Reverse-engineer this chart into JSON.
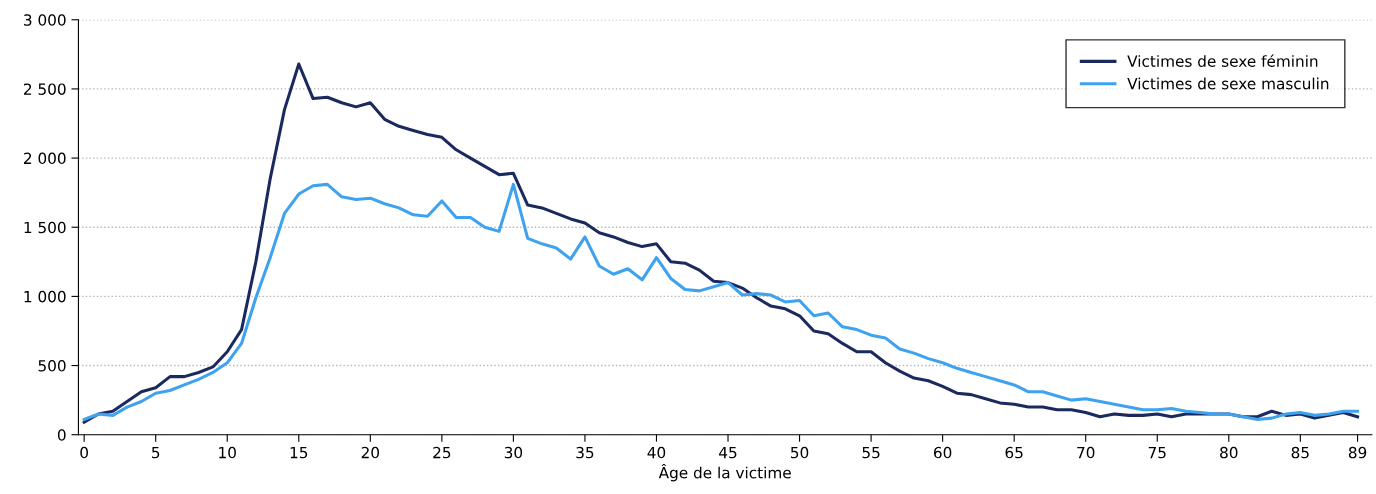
{
  "chart_data": {
    "type": "line",
    "xlabel": "Âge de la victime",
    "x": [
      0,
      1,
      2,
      3,
      4,
      5,
      6,
      7,
      8,
      9,
      10,
      11,
      12,
      13,
      14,
      15,
      16,
      17,
      18,
      19,
      20,
      21,
      22,
      23,
      24,
      25,
      26,
      27,
      28,
      29,
      30,
      31,
      32,
      33,
      34,
      35,
      36,
      37,
      38,
      39,
      40,
      41,
      42,
      43,
      44,
      45,
      46,
      47,
      48,
      49,
      50,
      51,
      52,
      53,
      54,
      55,
      56,
      57,
      58,
      59,
      60,
      61,
      62,
      63,
      64,
      65,
      66,
      67,
      68,
      69,
      70,
      71,
      72,
      73,
      74,
      75,
      76,
      77,
      78,
      79,
      80,
      81,
      82,
      83,
      84,
      85,
      86,
      87,
      88,
      89
    ],
    "series": [
      {
        "name": "Victimes de sexe féminin",
        "color": "#1b2a5e",
        "values": [
          90,
          150,
          170,
          240,
          310,
          340,
          420,
          420,
          450,
          490,
          600,
          760,
          1250,
          1850,
          2350,
          2680,
          2430,
          2440,
          2400,
          2370,
          2400,
          2280,
          2230,
          2200,
          2170,
          2150,
          2060,
          2000,
          1940,
          1880,
          1890,
          1660,
          1640,
          1600,
          1560,
          1530,
          1460,
          1430,
          1390,
          1360,
          1380,
          1250,
          1240,
          1190,
          1110,
          1100,
          1060,
          990,
          930,
          910,
          860,
          750,
          730,
          660,
          600,
          600,
          520,
          460,
          410,
          390,
          350,
          300,
          290,
          260,
          230,
          220,
          200,
          200,
          180,
          180,
          160,
          130,
          150,
          140,
          140,
          150,
          130,
          150,
          150,
          150,
          150,
          130,
          130,
          170,
          140,
          150,
          120,
          140,
          160,
          130
        ]
      },
      {
        "name": "Victimes de sexe masculin",
        "color": "#3fa2ef",
        "values": [
          110,
          150,
          140,
          200,
          240,
          300,
          320,
          360,
          400,
          450,
          520,
          660,
          990,
          1280,
          1600,
          1740,
          1800,
          1810,
          1720,
          1700,
          1710,
          1670,
          1640,
          1590,
          1580,
          1690,
          1570,
          1570,
          1500,
          1470,
          1810,
          1420,
          1380,
          1350,
          1270,
          1430,
          1220,
          1160,
          1200,
          1120,
          1280,
          1130,
          1050,
          1040,
          1070,
          1100,
          1010,
          1020,
          1010,
          960,
          970,
          860,
          880,
          780,
          760,
          720,
          700,
          620,
          590,
          550,
          520,
          480,
          450,
          420,
          390,
          360,
          310,
          310,
          280,
          250,
          260,
          240,
          220,
          200,
          180,
          180,
          190,
          170,
          160,
          150,
          150,
          130,
          110,
          120,
          150,
          160,
          140,
          150,
          170,
          170
        ]
      }
    ],
    "xlim": [
      -0.4,
      90
    ],
    "xticks": [
      0,
      5,
      10,
      15,
      20,
      25,
      30,
      35,
      40,
      45,
      50,
      55,
      60,
      65,
      70,
      75,
      80,
      85,
      89
    ],
    "ylim": [
      0,
      3000
    ],
    "yticks": [
      {
        "value": 0,
        "label": "0"
      },
      {
        "value": 500,
        "label": "500"
      },
      {
        "value": 1000,
        "label": "1 000"
      },
      {
        "value": 1500,
        "label": "1 500"
      },
      {
        "value": 2000,
        "label": "2 000"
      },
      {
        "value": 2500,
        "label": "2 500"
      },
      {
        "value": 3000,
        "label": "3 000"
      }
    ],
    "grid": "y",
    "legend": "top right",
    "marker": "none",
    "line_style": "solid"
  }
}
